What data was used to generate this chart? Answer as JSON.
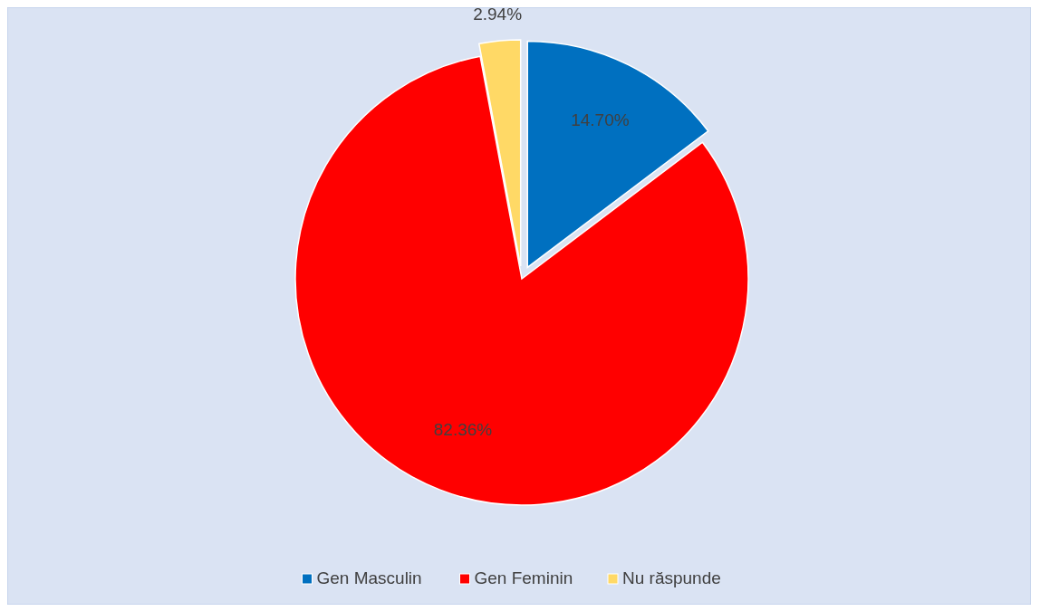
{
  "chart_data": {
    "type": "pie",
    "categories": [
      "Gen Masculin",
      "Gen Feminin",
      "Nu răspunde"
    ],
    "values": [
      14.7,
      82.36,
      2.94
    ],
    "colors": [
      "#0070c0",
      "#ff0000",
      "#ffd966"
    ],
    "value_labels": [
      "14.70%",
      "82.36%",
      "2.94%"
    ],
    "legend": "bottom"
  }
}
